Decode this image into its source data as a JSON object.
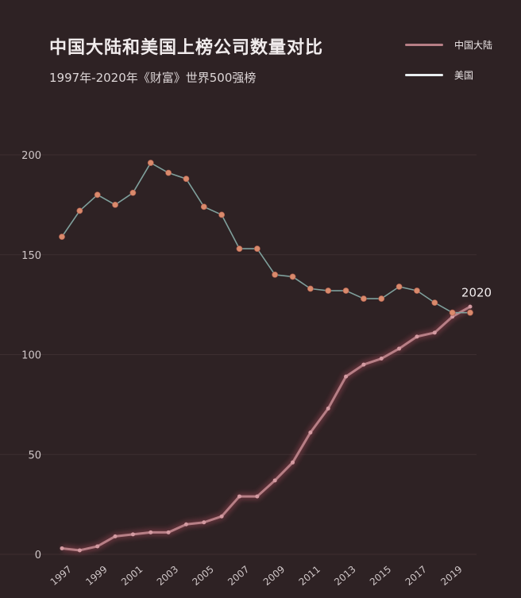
{
  "chart_data": {
    "type": "line",
    "title": "中国大陆和美国上榜公司数量对比",
    "subtitle": "1997年-2020年《财富》世界500强榜",
    "x": [
      1997,
      1998,
      1999,
      2000,
      2001,
      2002,
      2003,
      2004,
      2005,
      2006,
      2007,
      2008,
      2009,
      2010,
      2011,
      2012,
      2013,
      2014,
      2015,
      2016,
      2017,
      2018,
      2019,
      2020
    ],
    "x_tick_labels": [
      "1997",
      "1999",
      "2001",
      "2003",
      "2005",
      "2007",
      "2009",
      "2011",
      "2013",
      "2015",
      "2017",
      "2019"
    ],
    "y_ticks": [
      0,
      50,
      100,
      150,
      200
    ],
    "ylim": [
      0,
      200
    ],
    "grid": true,
    "legend_position": "top-right",
    "annotation": "2020",
    "series": [
      {
        "name": "中国大陆",
        "color": "#b77f86",
        "values": [
          3,
          2,
          4,
          9,
          10,
          11,
          11,
          15,
          16,
          19,
          29,
          29,
          37,
          46,
          61,
          73,
          89,
          95,
          98,
          103,
          109,
          111,
          119,
          124
        ]
      },
      {
        "name": "美国",
        "color": "#e9eef0",
        "values": [
          159,
          172,
          180,
          175,
          181,
          196,
          191,
          188,
          174,
          170,
          153,
          153,
          140,
          139,
          133,
          132,
          132,
          128,
          128,
          134,
          132,
          126,
          121,
          121
        ]
      }
    ]
  }
}
